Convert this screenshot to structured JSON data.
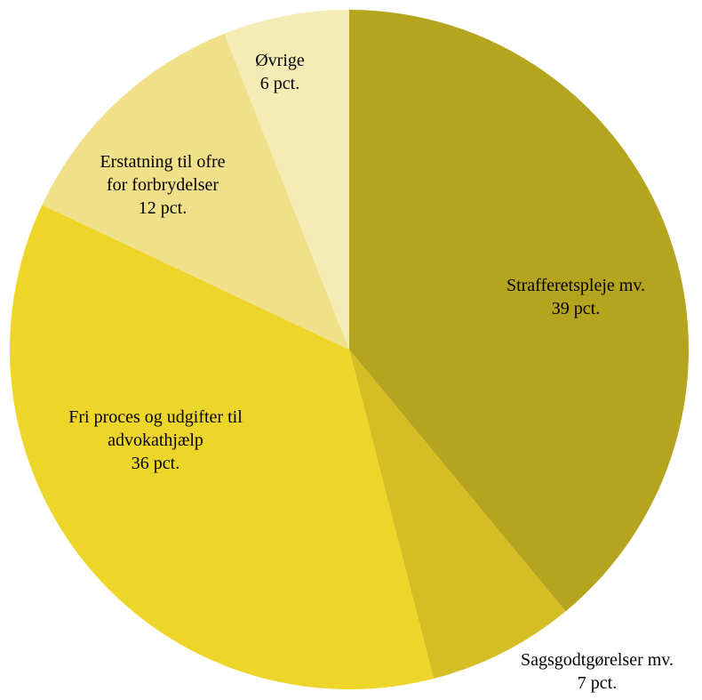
{
  "chart_data": {
    "type": "pie",
    "categories": [
      "Strafferetspleje mv.",
      "Sagsgodtgørelser mv.",
      "Fri proces og udgifter til advokathjælp",
      "Erstatning til ofre for forbrydelser",
      "Øvrige"
    ],
    "values": [
      39,
      7,
      36,
      12,
      6
    ],
    "value_labels": [
      "39 pct.",
      "7 pct.",
      "36 pct.",
      "12 pct.",
      "6 pct."
    ],
    "colors": [
      "#b5a41e",
      "#d4be23",
      "#edd629",
      "#f1e08a",
      "#f5ebb5"
    ]
  }
}
